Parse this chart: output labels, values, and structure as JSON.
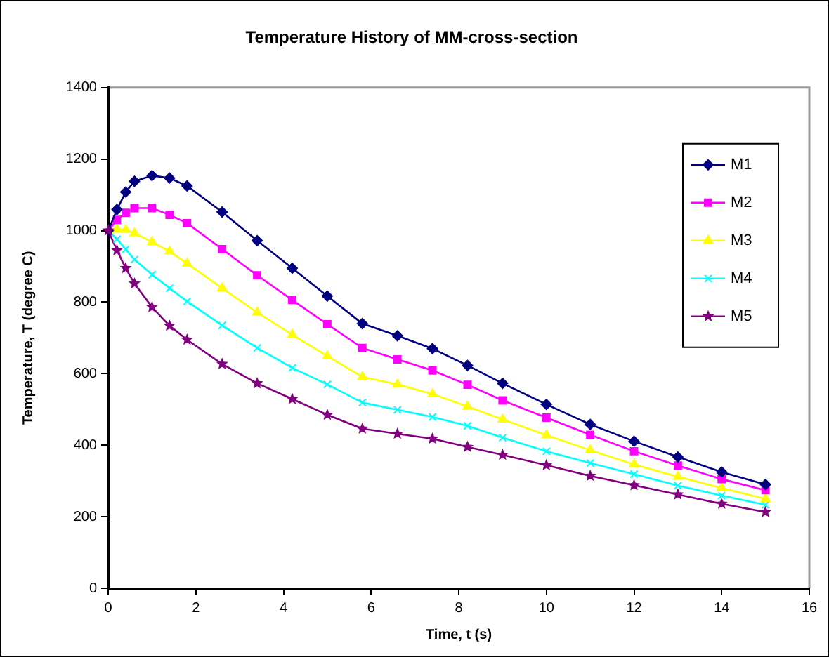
{
  "chart_data": {
    "type": "line",
    "title": "Temperature History of MM-cross-section",
    "xlabel": "Time, t (s)",
    "ylabel": "Temperature, T (degree C)",
    "x": [
      0,
      0.2,
      0.4,
      0.6,
      1,
      1.4,
      1.8,
      2.6,
      3.4,
      4.2,
      5,
      5.8,
      6.6,
      7.4,
      8.2,
      9,
      10,
      11,
      12,
      13,
      14,
      15
    ],
    "series": [
      {
        "name": "M1",
        "color": "#000080",
        "marker": "diamond",
        "values": [
          1000,
          1059,
          1108,
          1138,
          1154,
          1147,
          1125,
          1052,
          972,
          895,
          817,
          740,
          706,
          670,
          623,
          573,
          514,
          458,
          411,
          367,
          325,
          290
        ]
      },
      {
        "name": "M2",
        "color": "#ff00ff",
        "marker": "square",
        "values": [
          1000,
          1030,
          1050,
          1063,
          1063,
          1044,
          1021,
          948,
          875,
          806,
          738,
          672,
          640,
          609,
          569,
          525,
          477,
          429,
          383,
          343,
          305,
          274
        ]
      },
      {
        "name": "M3",
        "color": "#ffff00",
        "marker": "triangle",
        "values": [
          1000,
          1004,
          1002,
          993,
          968,
          942,
          908,
          839,
          771,
          709,
          649,
          591,
          570,
          543,
          508,
          472,
          428,
          386,
          346,
          312,
          280,
          250
        ]
      },
      {
        "name": "M4",
        "color": "#00ffff",
        "marker": "cross",
        "values": [
          1000,
          976,
          948,
          919,
          877,
          839,
          802,
          735,
          672,
          616,
          570,
          519,
          499,
          479,
          454,
          421,
          383,
          350,
          319,
          287,
          259,
          233
        ]
      },
      {
        "name": "M5",
        "color": "#800080",
        "marker": "star",
        "values": [
          1000,
          945,
          895,
          852,
          786,
          734,
          695,
          627,
          573,
          529,
          485,
          446,
          432,
          418,
          395,
          373,
          344,
          314,
          288,
          262,
          236,
          213
        ]
      }
    ],
    "xlim": [
      0,
      16
    ],
    "xticks": [
      0,
      2,
      4,
      6,
      8,
      10,
      12,
      14,
      16
    ],
    "ylim": [
      0,
      1400
    ],
    "yticks": [
      0,
      200,
      400,
      600,
      800,
      1000,
      1200,
      1400
    ],
    "legend": "top right",
    "grid": false,
    "line_style": "solid"
  }
}
